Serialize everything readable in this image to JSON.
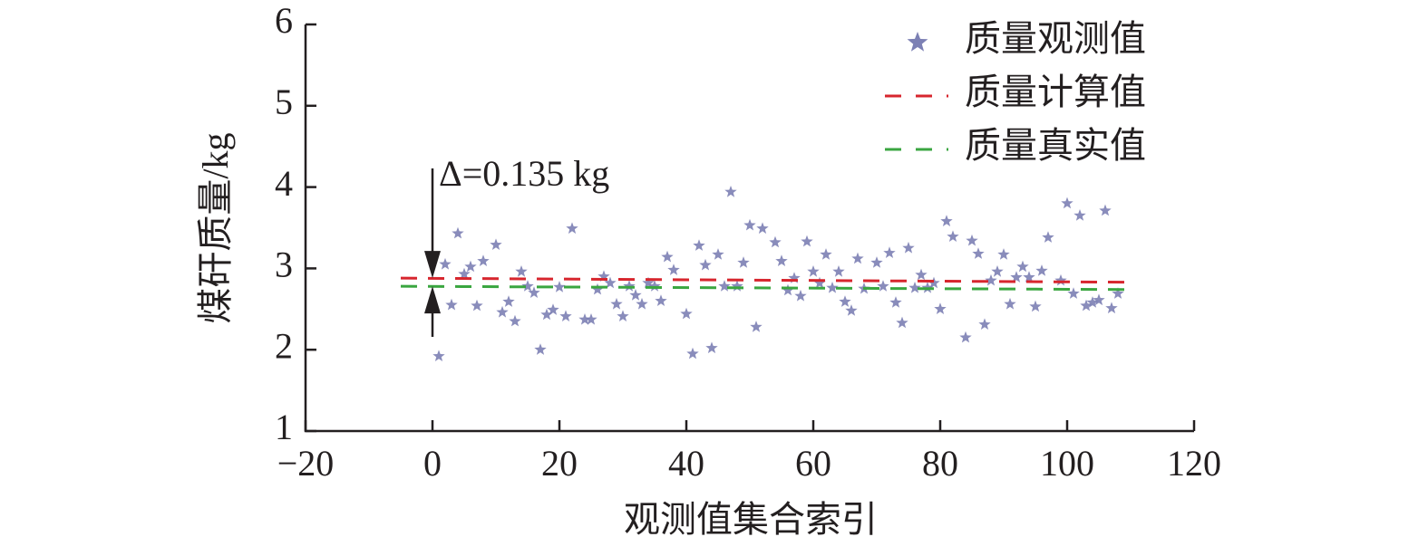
{
  "chart_data": {
    "type": "scatter",
    "xlabel": "观测值集合索引",
    "ylabel": "煤矸质量/kg",
    "xlim": [
      -20,
      120
    ],
    "xticks": [
      {
        "value": -20,
        "label": "−20"
      },
      0,
      20,
      40,
      60,
      80,
      100,
      120
    ],
    "ylim": [
      1,
      6
    ],
    "yticks": [
      1,
      2,
      3,
      4,
      5,
      6
    ],
    "grid": false,
    "legend": "upper right",
    "annotation": "Δ=0.135 kg",
    "series": [
      {
        "name": "质量观测值",
        "type": "scatter",
        "color": "#7c80b4",
        "x": [
          1,
          2,
          3,
          4,
          5,
          6,
          7,
          8,
          10,
          11,
          12,
          13,
          14,
          15,
          16,
          17,
          18,
          19,
          20,
          21,
          22,
          24,
          25,
          26,
          27,
          28,
          29,
          30,
          31,
          32,
          33,
          34,
          35,
          36,
          37,
          38,
          40,
          41,
          42,
          43,
          44,
          45,
          46,
          47,
          48,
          49,
          50,
          51,
          52,
          54,
          55,
          56,
          57,
          58,
          59,
          60,
          61,
          62,
          63,
          64,
          65,
          66,
          67,
          68,
          70,
          71,
          72,
          73,
          74,
          75,
          76,
          77,
          78,
          79,
          80,
          81,
          82,
          84,
          85,
          86,
          87,
          88,
          89,
          90,
          91,
          92,
          93,
          94,
          95,
          96,
          97,
          99,
          100,
          101,
          102,
          103,
          104,
          105,
          106,
          107,
          108
        ],
        "values": [
          1.92,
          3.05,
          2.55,
          3.43,
          2.93,
          3.02,
          2.54,
          3.09,
          3.29,
          2.46,
          2.59,
          2.35,
          2.96,
          2.78,
          2.7,
          2.0,
          2.43,
          2.49,
          2.77,
          2.41,
          3.49,
          2.37,
          2.37,
          2.74,
          2.9,
          2.82,
          2.56,
          2.41,
          2.78,
          2.67,
          2.56,
          2.82,
          2.78,
          2.6,
          3.14,
          2.98,
          2.44,
          1.95,
          3.28,
          3.04,
          2.02,
          3.17,
          2.78,
          3.94,
          2.78,
          3.07,
          3.53,
          2.28,
          3.49,
          3.32,
          3.09,
          2.73,
          2.88,
          2.66,
          3.33,
          2.96,
          2.82,
          3.17,
          2.76,
          2.96,
          2.59,
          2.48,
          3.12,
          2.75,
          3.07,
          2.78,
          3.19,
          2.58,
          2.33,
          3.25,
          2.76,
          2.92,
          2.76,
          2.82,
          2.5,
          3.58,
          3.39,
          2.15,
          3.34,
          3.18,
          2.31,
          2.85,
          2.96,
          3.17,
          2.56,
          2.89,
          3.02,
          2.89,
          2.53,
          2.97,
          3.38,
          2.85,
          3.8,
          2.69,
          3.65,
          2.54,
          2.58,
          2.61,
          3.71,
          2.51,
          2.69
        ]
      },
      {
        "name": "质量计算值",
        "type": "line",
        "color": "#d7262e",
        "x": [
          -5,
          110
        ],
        "values": [
          2.88,
          2.83
        ]
      },
      {
        "name": "质量真实值",
        "type": "line",
        "color": "#3aa640",
        "x": [
          -5,
          110
        ],
        "values": [
          2.78,
          2.74
        ]
      }
    ]
  }
}
